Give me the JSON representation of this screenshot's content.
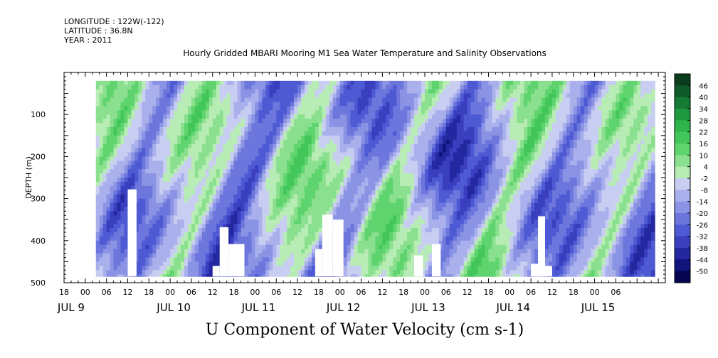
{
  "header": {
    "longitude": "LONGITUDE : 122W(-122)",
    "latitude": "LATITUDE : 36.8N",
    "year": "YEAR : 2011",
    "title": "Hourly Gridded MBARI Mooring M1 Sea Water Temperature and Salinity Observations"
  },
  "footer": {
    "variable_title": "U Component of Water Velocity (cm s-1)"
  },
  "chart_data": {
    "type": "heatmap",
    "title": "Hourly Gridded MBARI Mooring M1 Sea Water Temperature and Salinity Observations",
    "subtitle": "U Component of Water Velocity (cm s-1)",
    "xlabel": "",
    "ylabel": "DEPTH (m)",
    "x_axis": {
      "hour_ticks": [
        "18",
        "00",
        "06",
        "12",
        "18",
        "00",
        "06",
        "12",
        "18",
        "00",
        "06",
        "12",
        "18",
        "00",
        "06",
        "12",
        "18",
        "00",
        "06",
        "12",
        "18",
        "00",
        "06",
        "12",
        "18",
        "00",
        "06"
      ],
      "day_labels": [
        "JUL 9",
        "JUL 10",
        "JUL 11",
        "JUL 12",
        "JUL 13",
        "JUL 14",
        "JUL 15"
      ],
      "range_hours_from_jul9_00": [
        -6,
        164
      ]
    },
    "y_axis": {
      "ticks": [
        100,
        200,
        300,
        400,
        500
      ],
      "ylim": [
        500,
        0
      ],
      "inverted": true
    },
    "colorbar": {
      "labels": [
        "46",
        "40",
        "34",
        "28",
        "22",
        "16",
        "10",
        "4",
        "-2",
        "-8",
        "-14",
        "-20",
        "-26",
        "-32",
        "-38",
        "-44",
        "-50"
      ],
      "colors": [
        "#0a3d1e",
        "#0f5a2a",
        "#147a34",
        "#1d9a3f",
        "#2db44b",
        "#42c65a",
        "#5fd46e",
        "#8ae08e",
        "#b8ecb5",
        "#c8cdf2",
        "#a9b0ec",
        "#8b93e4",
        "#6c76dc",
        "#4e5ad3",
        "#3a3fbf",
        "#2328a0",
        "#10137a",
        "#05054f"
      ],
      "range": [
        -50,
        52
      ]
    },
    "data_region": {
      "start_hour": 3,
      "end_hour": 161,
      "depth_top": 20,
      "depth_bottom": 485
    },
    "masked_blocks": [
      {
        "start_hour": 12,
        "end_hour": 14.5,
        "depth_from": 278,
        "depth_to": 485
      },
      {
        "start_hour": 38,
        "end_hour": 40.5,
        "depth_from": 368,
        "depth_to": 485
      },
      {
        "start_hour": 40.5,
        "end_hour": 45,
        "depth_from": 408,
        "depth_to": 485
      },
      {
        "start_hour": 36,
        "end_hour": 38,
        "depth_from": 460,
        "depth_to": 485
      },
      {
        "start_hour": 65,
        "end_hour": 67,
        "depth_from": 420,
        "depth_to": 485
      },
      {
        "start_hour": 67,
        "end_hour": 70,
        "depth_from": 338,
        "depth_to": 485
      },
      {
        "start_hour": 70,
        "end_hour": 73,
        "depth_from": 350,
        "depth_to": 485
      },
      {
        "start_hour": 93,
        "end_hour": 95.5,
        "depth_from": 435,
        "depth_to": 485
      },
      {
        "start_hour": 98,
        "end_hour": 100.5,
        "depth_from": 408,
        "depth_to": 485
      },
      {
        "start_hour": 126,
        "end_hour": 128,
        "depth_from": 455,
        "depth_to": 485
      },
      {
        "start_hour": 128,
        "end_hour": 130,
        "depth_from": 342,
        "depth_to": 485
      },
      {
        "start_hour": 130,
        "end_hour": 132,
        "depth_from": 460,
        "depth_to": 485
      }
    ]
  }
}
